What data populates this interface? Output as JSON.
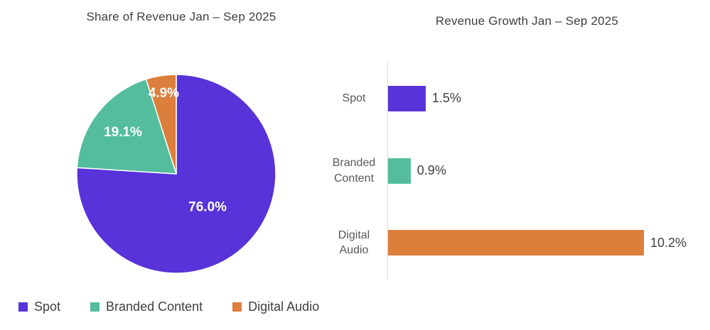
{
  "chart_data": [
    {
      "type": "pie",
      "title": "Share of Revenue Jan – Sep 2025",
      "categories": [
        "Spot",
        "Branded Content",
        "Digital Audio"
      ],
      "values": [
        76.0,
        19.1,
        4.9
      ],
      "labels": [
        "76.0%",
        "19.1%",
        "4.9%"
      ],
      "colors": [
        "#5733d9",
        "#53bd9d",
        "#dc7e3c"
      ],
      "start_angle_deg": 0,
      "direction": "clockwise",
      "label_radius": [
        0.46,
        0.68,
        0.82
      ],
      "label_color": "#ffffff",
      "slice_border_color": "#ffffff"
    },
    {
      "type": "bar",
      "orientation": "horizontal",
      "title": "Revenue Growth Jan – Sep 2025",
      "categories": [
        "Spot",
        "Branded Content",
        "Digital Audio"
      ],
      "values": [
        1.5,
        0.9,
        10.2
      ],
      "labels": [
        "1.5%",
        "0.9%",
        "10.2%"
      ],
      "colors": [
        "#5733d9",
        "#53bd9d",
        "#dc7e3c"
      ],
      "xlim": [
        0,
        10.2
      ],
      "axis_color": "#d9d9d9",
      "grid": false,
      "value_labels": "outside-end"
    }
  ],
  "legend": {
    "position": "bottom-left",
    "items": [
      {
        "label": "Spot",
        "color": "#5733d9"
      },
      {
        "label": "Branded Content",
        "color": "#53bd9d"
      },
      {
        "label": "Digital Audio",
        "color": "#dc7e3c"
      }
    ]
  }
}
